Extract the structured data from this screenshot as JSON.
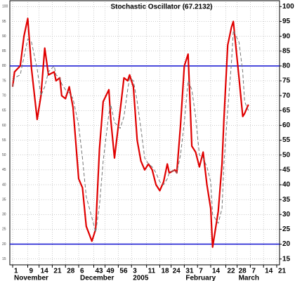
{
  "chart_data": {
    "type": "line",
    "title": "Stochastic Oscillator (67.2132)",
    "x": [
      0,
      1,
      4,
      6,
      8,
      10,
      13,
      15,
      17,
      19,
      22,
      23,
      25,
      26,
      28,
      30,
      32,
      35,
      37,
      39,
      42,
      44,
      46,
      48,
      51,
      52,
      54,
      57,
      59,
      61,
      62,
      64,
      66,
      68,
      70,
      72,
      74,
      76,
      78,
      80,
      82,
      83,
      86,
      87,
      89,
      91,
      93,
      95,
      97,
      99,
      101,
      103,
      105,
      106,
      109,
      111,
      112,
      114,
      116,
      117,
      120,
      122,
      123,
      125
    ],
    "series": [
      {
        "color": "#e00000",
        "dashed": false,
        "values": [
          73,
          78,
          80,
          90,
          96,
          79,
          62,
          70,
          86,
          77,
          78,
          75,
          76,
          70,
          69,
          73,
          66,
          42,
          39,
          26,
          21,
          25,
          52,
          68,
          72,
          62,
          49,
          65,
          76,
          75,
          77,
          73,
          55,
          48,
          45,
          47,
          45,
          40,
          38,
          41,
          47,
          44,
          45,
          44,
          60,
          80,
          84,
          53,
          51,
          46,
          51,
          40,
          32,
          19,
          31,
          47,
          62,
          87,
          93,
          95,
          76,
          63,
          64,
          67
        ]
      },
      {
        "color": "#777777",
        "dashed": true,
        "values": [
          73,
          76,
          77,
          83,
          89,
          88,
          79,
          70,
          73,
          78,
          80,
          77,
          76,
          74,
          72,
          71,
          69,
          60,
          49,
          36,
          29,
          24,
          33,
          48,
          64,
          67,
          61,
          59,
          63,
          72,
          76,
          75,
          68,
          59,
          49,
          47,
          46,
          44,
          41,
          40,
          42,
          44,
          45,
          44,
          50,
          61,
          75,
          72,
          63,
          50,
          49,
          46,
          41,
          30,
          27,
          32,
          47,
          65,
          81,
          92,
          88,
          78,
          68,
          65
        ]
      }
    ],
    "xlim": [
      -1.5,
      141.5
    ],
    "xticks": [
      {
        "value": 0,
        "label": "1"
      },
      {
        "value": 8,
        "label": "9"
      },
      14,
      21,
      28,
      {
        "value": 35,
        "label": "6"
      },
      43,
      49,
      56,
      {
        "value": 63,
        "label": "3"
      },
      {
        "value": 71,
        "label": "11"
      },
      {
        "value": 78,
        "label": "18"
      },
      {
        "value": 84,
        "label": "24"
      },
      {
        "value": 91,
        "label": "31"
      },
      {
        "value": 98,
        "label": "7"
      },
      {
        "value": 105,
        "label": "14"
      },
      {
        "value": 113,
        "label": "22"
      },
      {
        "value": 119,
        "label": "28"
      },
      {
        "value": 126,
        "label": "7"
      },
      {
        "value": 133,
        "label": "14"
      },
      {
        "value": 140,
        "label": "21"
      }
    ],
    "month_labels": [
      {
        "value": 0,
        "label": "November"
      },
      {
        "value": 35,
        "label": "December"
      },
      {
        "value": 63,
        "label": "2005"
      },
      {
        "value": 91,
        "label": "February"
      },
      {
        "value": 119,
        "label": "March"
      }
    ],
    "ylim": [
      13.5,
      101.5
    ],
    "yticks": [
      15,
      20,
      25,
      30,
      35,
      40,
      45,
      50,
      55,
      60,
      65,
      70,
      75,
      80,
      85,
      90,
      95,
      100
    ],
    "hlines": [
      80,
      20
    ],
    "hline_color": "#1010d0",
    "grid": true
  }
}
